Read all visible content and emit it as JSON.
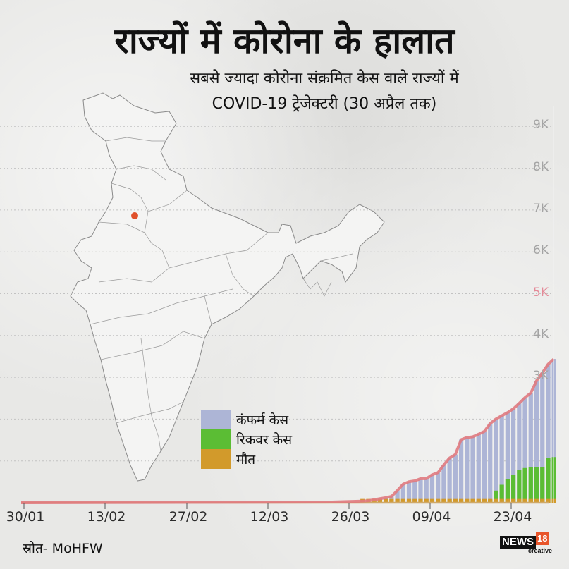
{
  "header": {
    "title": "राज्यों में कोरोना के हालात",
    "subtitle_line1": "सबसे ज्यादा कोरोना संक्रमित केस वाले राज्यों में",
    "subtitle_line2": "COVID-19 ट्रेजेक्टरी (30 अप्रैल तक)"
  },
  "map": {
    "highlighted_region": "Delhi",
    "highlight_color": "#e0502a"
  },
  "legend": {
    "items": [
      {
        "label": "कंफर्म केस",
        "color": "#adb5d6"
      },
      {
        "label": "रिकवर केस",
        "color": "#5bbd34"
      },
      {
        "label": "मौत",
        "color": "#d29a2b"
      }
    ]
  },
  "footer": {
    "source": "स्रोत- MoHFW",
    "logo_news": "NEWS",
    "logo_18": "18",
    "logo_creative": "creative"
  },
  "axis": {
    "y_ticks": [
      "3K",
      "4K",
      "5K",
      "6K",
      "7K",
      "8K",
      "9K"
    ],
    "y_highlight": "5K",
    "x_ticks": [
      "30/01",
      "13/02",
      "27/02",
      "12/03",
      "26/03",
      "09/04",
      "23/04"
    ]
  },
  "colors": {
    "confirmed": "#adb5d6",
    "recovered": "#5bbd34",
    "deaths": "#d29a2b",
    "trend_line": "#e07a80",
    "y_label": "#a4a4a4",
    "y_label_highlight": "#e48a98"
  },
  "chart_data": {
    "type": "bar",
    "title": "राज्यों में कोरोना के हालात",
    "subtitle": "सबसे ज्यादा कोरोना संक्रमित केस वाले राज्यों में COVID-19 ट्रेजेक्टरी (30 अप्रैल तक)",
    "region": "Delhi",
    "xlabel": "",
    "ylabel": "",
    "ylim": [
      0,
      9000
    ],
    "x_tick_labels": [
      "30/01",
      "13/02",
      "27/02",
      "12/03",
      "26/03",
      "09/04",
      "23/04"
    ],
    "y_tick_labels": [
      "3K",
      "4K",
      "5K",
      "6K",
      "7K",
      "8K",
      "9K"
    ],
    "grid": "horizontal dotted",
    "legend_position": "inside, lower-center",
    "categories": [
      "28/03",
      "29/03",
      "30/03",
      "31/03",
      "01/04",
      "02/04",
      "03/04",
      "04/04",
      "05/04",
      "06/04",
      "07/04",
      "08/04",
      "09/04",
      "10/04",
      "11/04",
      "12/04",
      "13/04",
      "14/04",
      "15/04",
      "16/04",
      "17/04",
      "18/04",
      "19/04",
      "20/04",
      "21/04",
      "22/04",
      "23/04",
      "24/04",
      "25/04",
      "26/04",
      "27/04",
      "28/04",
      "29/04",
      "30/04"
    ],
    "series": [
      {
        "name": "कंफर्म केस",
        "values": [
          39,
          49,
          72,
          97,
          120,
          152,
          293,
          445,
          503,
          523,
          576,
          576,
          669,
          720,
          903,
          1069,
          1154,
          1510,
          1561,
          1578,
          1640,
          1707,
          1893,
          2003,
          2081,
          2156,
          2248,
          2376,
          2514,
          2625,
          2918,
          3108,
          3314,
          3439
        ]
      },
      {
        "name": "रिकवर केस",
        "values": [
          6,
          7,
          7,
          7,
          7,
          7,
          8,
          15,
          15,
          19,
          21,
          21,
          25,
          25,
          25,
          38,
          38,
          38,
          38,
          38,
          43,
          72,
          72,
          290,
          430,
          560,
          660,
          780,
          830,
          857,
          857,
          857,
          1078,
          1092
        ]
      },
      {
        "name": "मौत",
        "values": [
          2,
          2,
          2,
          2,
          2,
          3,
          4,
          6,
          7,
          7,
          9,
          9,
          9,
          13,
          14,
          19,
          19,
          30,
          30,
          32,
          38,
          42,
          43,
          45,
          47,
          48,
          50,
          50,
          53,
          54,
          54,
          54,
          56,
          59
        ]
      }
    ],
    "trend_line": "confirmed cases (red)"
  }
}
